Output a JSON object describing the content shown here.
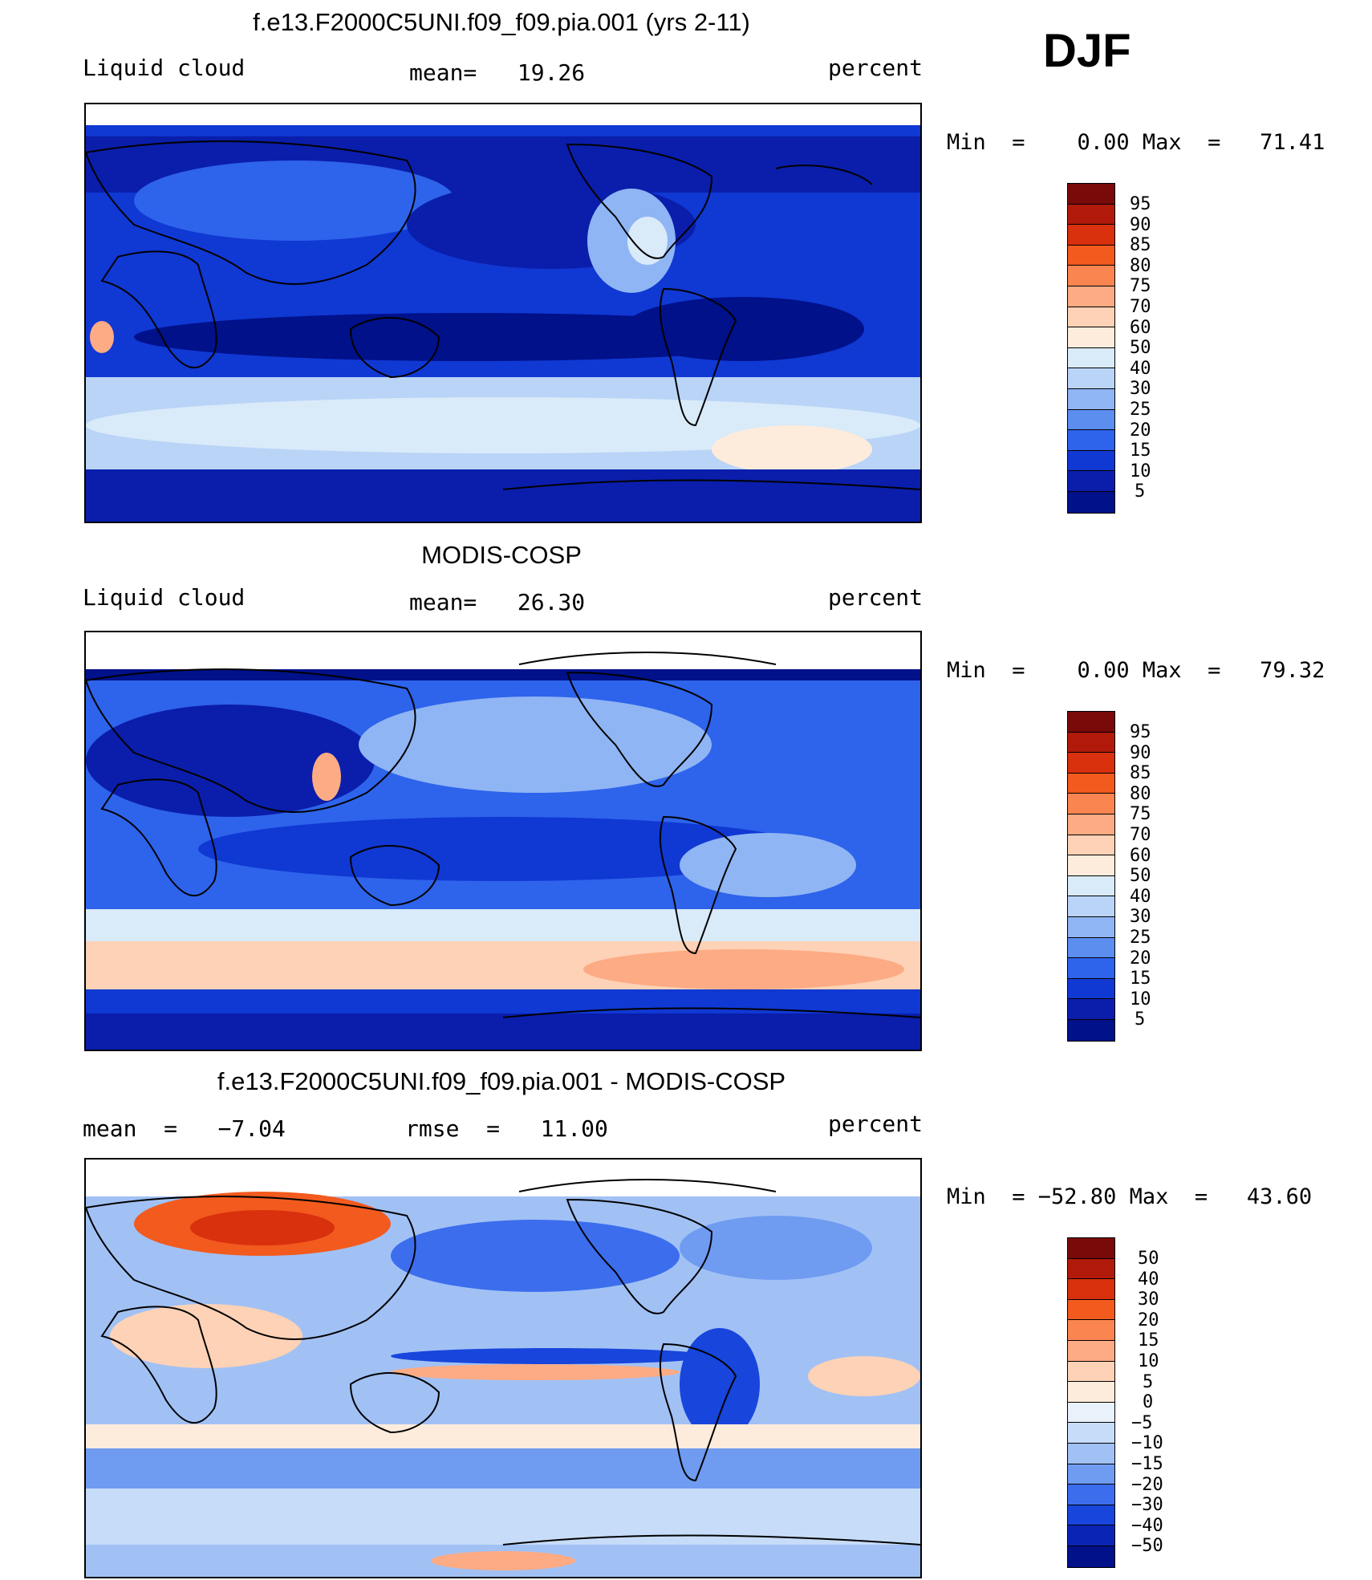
{
  "season": "DJF",
  "panels": [
    {
      "title": "f.e13.F2000C5UNI.f09_f09.pia.001 (yrs 2-11)",
      "left_label": "Liquid cloud",
      "center_label": "mean=   19.26",
      "right_label": "percent",
      "minmax": "Min  =    0.00 Max  =   71.41",
      "levels": [
        "95",
        "90",
        "85",
        "80",
        "75",
        "70",
        "60",
        "50",
        "40",
        "30",
        "25",
        "20",
        "15",
        "10",
        "5"
      ]
    },
    {
      "title": "MODIS-COSP",
      "left_label": "Liquid cloud",
      "center_label": "mean=   26.30",
      "right_label": "percent",
      "minmax": "Min  =    0.00 Max  =   79.32",
      "levels": [
        "95",
        "90",
        "85",
        "80",
        "75",
        "70",
        "60",
        "50",
        "40",
        "30",
        "25",
        "20",
        "15",
        "10",
        "5"
      ]
    },
    {
      "title": "f.e13.F2000C5UNI.f09_f09.pia.001 - MODIS-COSP",
      "left_label": "mean  =   −7.04",
      "center_label": "rmse  =   11.00",
      "right_label": "percent",
      "minmax": "Min  = −52.80 Max  =   43.60",
      "levels": [
        "50",
        "40",
        "30",
        "20",
        "15",
        "10",
        "5",
        "0",
        "−5",
        "−10",
        "−15",
        "−20",
        "−30",
        "−40",
        "−50"
      ]
    }
  ],
  "colors": {
    "abs_scale": [
      "#7a0a0a",
      "#b11a0a",
      "#d9300e",
      "#f25a1e",
      "#fb8550",
      "#fdab84",
      "#fdd2b6",
      "#fdecdc",
      "#d9eaf9",
      "#b9d4f7",
      "#8fb5f4",
      "#5c8ef0",
      "#2e63eb",
      "#1038d3",
      "#0a1eab",
      "#00118a"
    ],
    "diff_scale": [
      "#7a0a0a",
      "#b11a0a",
      "#d9300e",
      "#f25a1e",
      "#fb8550",
      "#fdab84",
      "#fdd2b6",
      "#fdecdc",
      "#e9f1fb",
      "#c7dcf8",
      "#a1c1f5",
      "#6f9bf1",
      "#3c6ded",
      "#1845db",
      "#0a25b5",
      "#00118a"
    ]
  }
}
